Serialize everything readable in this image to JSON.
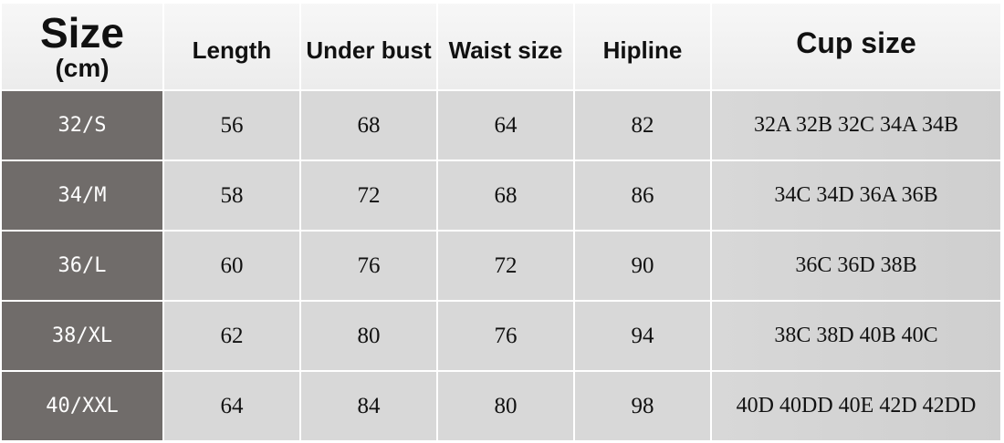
{
  "header": {
    "size": "Size",
    "unit": "(cm)",
    "columns": [
      "Length",
      "Under bust",
      "Waist size",
      "Hipline",
      "Cup size"
    ]
  },
  "table": {
    "rows": [
      [
        "32/S",
        56,
        68,
        64,
        82,
        "32A 32B 32C 34A 34B"
      ],
      [
        "34/M",
        58,
        72,
        68,
        86,
        "34C 34D 36A 36B"
      ],
      [
        "36/L",
        60,
        76,
        72,
        90,
        "36C 36D 38B"
      ],
      [
        "38/XL",
        62,
        80,
        76,
        94,
        "38C 38D 40B 40C"
      ],
      [
        "40/XXL",
        64,
        84,
        80,
        98,
        "40D 40DD 40E 42D 42DD"
      ]
    ]
  }
}
